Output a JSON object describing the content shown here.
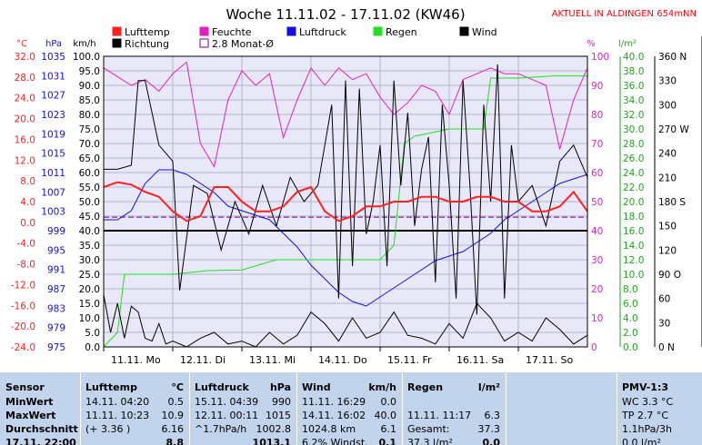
{
  "header": {
    "title": "Woche 11.11.02 - 17.11.02 (KW46)",
    "current_link": "AKTUELL IN ALDINGEN 654mNN"
  },
  "legend": {
    "items": [
      {
        "label": "Lufttemp",
        "color": "#ff2020",
        "fill": true
      },
      {
        "label": "Feuchte",
        "color": "#e020c0",
        "fill": true
      },
      {
        "label": "Luftdruck",
        "color": "#1010e0",
        "fill": true
      },
      {
        "label": "Regen",
        "color": "#20e020",
        "fill": true
      },
      {
        "label": "Wind",
        "color": "#000000",
        "fill": true
      },
      {
        "label": "Richtung",
        "color": "#000000",
        "fill": true
      },
      {
        "label": "2.8 Monat-Ø",
        "color": "#800080",
        "fill": false
      }
    ]
  },
  "axis_units": {
    "temp": "°C",
    "pressure": "hPa",
    "wind": "km/h",
    "humidity": "%",
    "rain": "l/m²"
  },
  "chart_data": {
    "type": "line",
    "title": "Woche 11.11.02 - 17.11.02 (KW46)",
    "x_ticks": [
      "11.11. Mo",
      "12.11. Di",
      "13.11. Mi",
      "14.11. Do",
      "15.11. Fr",
      "16.11. Sa",
      "17.11. So"
    ],
    "x_range": [
      0,
      7
    ],
    "axes": {
      "wind": {
        "range": [
          0,
          100
        ],
        "ticks": [
          "0.0",
          "5.0",
          "10.0",
          "15.0",
          "20.0",
          "25.0",
          "30.0",
          "35.0",
          "40.0",
          "45.0",
          "50.0",
          "55.0",
          "60.0",
          "65.0",
          "70.0",
          "75.0",
          "80.0",
          "85.0",
          "90.0",
          "95.0",
          "100.0"
        ]
      },
      "temp": {
        "range": [
          -24,
          36
        ],
        "ticks": [
          "-24.0",
          "-20.0",
          "-16.0",
          "-12.0",
          "-8.0",
          "-4.0",
          "0.0",
          "4.0",
          "8.0",
          "12.0",
          "16.0",
          "20.0",
          "24.0",
          "28.0",
          "32.0"
        ]
      },
      "pressure": {
        "range": [
          975,
          1039
        ],
        "ticks": [
          "975",
          "979",
          "983",
          "987",
          "991",
          "995",
          "999",
          "1003",
          "1007",
          "1011",
          "1015",
          "1019",
          "1023",
          "1027",
          "1031",
          "1035"
        ]
      },
      "humidity": {
        "range": [
          0,
          100
        ],
        "ticks": [
          "0",
          "10",
          "20",
          "30",
          "40",
          "50",
          "60",
          "70",
          "80",
          "90",
          "100"
        ]
      },
      "rain": {
        "range": [
          0,
          40
        ],
        "ticks": [
          "0.0",
          "2.0",
          "4.0",
          "6.0",
          "8.0",
          "10.0",
          "12.0",
          "14.0",
          "16.0",
          "18.0",
          "20.0",
          "22.0",
          "24.0",
          "26.0",
          "28.0",
          "30.0",
          "32.0",
          "34.0",
          "36.0",
          "38.0",
          "40.0"
        ]
      },
      "direction": {
        "range": [
          0,
          360
        ],
        "ticks": [
          "0 N",
          "30",
          "60",
          "90 O",
          "120",
          "150",
          "180 S",
          "210",
          "240",
          "270 W",
          "300",
          "330",
          "360 N"
        ]
      }
    },
    "reference_lines": {
      "temp_zero": 0,
      "monthly_avg_temp": 2.8
    },
    "series": [
      {
        "name": "Lufttemp",
        "color": "#ff2020",
        "axis": "temp",
        "x": [
          0,
          0.2,
          0.4,
          0.6,
          0.8,
          1.0,
          1.2,
          1.4,
          1.6,
          1.8,
          2.0,
          2.2,
          2.4,
          2.6,
          2.8,
          3.0,
          3.2,
          3.4,
          3.6,
          3.8,
          4.0,
          4.2,
          4.4,
          4.6,
          4.8,
          5.0,
          5.2,
          5.4,
          5.6,
          5.8,
          6.0,
          6.2,
          6.4,
          6.6,
          6.8,
          7.0
        ],
        "y": [
          9,
          10,
          9.5,
          8,
          7,
          4,
          2,
          3,
          9,
          9,
          6,
          4,
          4,
          5,
          8,
          9,
          4,
          2,
          3,
          5,
          5,
          6,
          6,
          7,
          7,
          6,
          6,
          7,
          7,
          6,
          6,
          4,
          4,
          5,
          8,
          4
        ]
      },
      {
        "name": "Feuchte",
        "color": "#e020c0",
        "axis": "humidity",
        "x": [
          0,
          0.2,
          0.4,
          0.6,
          0.8,
          1.0,
          1.2,
          1.4,
          1.6,
          1.8,
          2.0,
          2.2,
          2.4,
          2.6,
          2.8,
          3.0,
          3.2,
          3.4,
          3.6,
          3.8,
          4.0,
          4.2,
          4.4,
          4.6,
          4.8,
          5.0,
          5.2,
          5.4,
          5.6,
          5.8,
          6.0,
          6.2,
          6.4,
          6.6,
          6.8,
          7.0
        ],
        "y": [
          96,
          93,
          90,
          92,
          88,
          94,
          98,
          70,
          62,
          85,
          95,
          90,
          94,
          72,
          85,
          96,
          90,
          96,
          92,
          94,
          86,
          80,
          84,
          90,
          88,
          80,
          92,
          94,
          96,
          94,
          94,
          92,
          90,
          68,
          85,
          96
        ]
      },
      {
        "name": "Luftdruck",
        "color": "#1010e0",
        "axis": "pressure",
        "x": [
          0,
          0.2,
          0.4,
          0.6,
          0.8,
          1.0,
          1.2,
          1.4,
          1.6,
          1.8,
          2.0,
          2.2,
          2.4,
          2.6,
          2.8,
          3.0,
          3.2,
          3.4,
          3.6,
          3.8,
          4.0,
          4.2,
          4.4,
          4.6,
          4.8,
          5.0,
          5.2,
          5.4,
          5.6,
          5.8,
          6.0,
          6.2,
          6.4,
          6.6,
          6.8,
          7.0
        ],
        "y": [
          1003,
          1003,
          1005,
          1011,
          1014,
          1014,
          1013,
          1011,
          1009,
          1006,
          1005,
          1004,
          1003,
          1000,
          997,
          993,
          990,
          987,
          985,
          984,
          986,
          988,
          990,
          992,
          994,
          995,
          996,
          998,
          1000,
          1003,
          1005,
          1007,
          1009,
          1011,
          1012,
          1013
        ]
      },
      {
        "name": "Regen",
        "color": "#20e020",
        "axis": "rain",
        "x": [
          0,
          0.2,
          0.3,
          0.5,
          1.0,
          1.5,
          2.0,
          2.5,
          3.0,
          3.5,
          4.0,
          4.2,
          4.35,
          4.5,
          5.0,
          5.5,
          5.6,
          6.0,
          6.5,
          7.0
        ],
        "y": [
          0,
          2,
          10,
          10,
          10,
          10.5,
          10.6,
          12,
          12,
          12,
          12,
          14,
          28,
          29,
          30,
          30,
          37,
          37,
          37.3,
          37.3
        ]
      },
      {
        "name": "Wind",
        "color": "#000000",
        "axis": "wind",
        "x": [
          0,
          0.1,
          0.2,
          0.3,
          0.4,
          0.5,
          0.6,
          0.7,
          0.8,
          0.9,
          1.0,
          1.2,
          1.4,
          1.6,
          1.8,
          2.0,
          2.2,
          2.4,
          2.6,
          2.8,
          3.0,
          3.2,
          3.4,
          3.6,
          3.8,
          4.0,
          4.2,
          4.4,
          4.6,
          4.8,
          5.0,
          5.2,
          5.4,
          5.6,
          5.8,
          6.0,
          6.2,
          6.4,
          6.6,
          6.8,
          7.0
        ],
        "y": [
          18,
          5,
          15,
          3,
          14,
          12,
          3,
          2,
          8,
          1,
          2,
          0,
          3,
          5,
          1,
          2,
          0,
          5,
          1,
          4,
          12,
          8,
          2,
          10,
          3,
          5,
          12,
          4,
          3,
          1,
          8,
          3,
          15,
          10,
          2,
          5,
          2,
          10,
          6,
          1,
          4
        ]
      },
      {
        "name": "Richtung",
        "color": "#000000",
        "axis": "direction",
        "x": [
          0,
          0.2,
          0.4,
          0.5,
          0.6,
          0.8,
          1.0,
          1.1,
          1.3,
          1.5,
          1.7,
          1.9,
          2.1,
          2.3,
          2.5,
          2.7,
          2.9,
          3.0,
          3.1,
          3.2,
          3.3,
          3.4,
          3.5,
          3.6,
          3.7,
          3.8,
          3.9,
          4.0,
          4.1,
          4.2,
          4.3,
          4.4,
          4.5,
          4.6,
          4.7,
          4.8,
          4.9,
          5.0,
          5.1,
          5.2,
          5.3,
          5.4,
          5.5,
          5.6,
          5.7,
          5.8,
          5.9,
          6.0,
          6.2,
          6.4,
          6.6,
          6.8,
          7.0
        ],
        "y": [
          220,
          220,
          225,
          330,
          330,
          250,
          230,
          70,
          200,
          190,
          120,
          180,
          140,
          200,
          150,
          210,
          180,
          190,
          200,
          250,
          300,
          60,
          330,
          100,
          320,
          140,
          180,
          250,
          100,
          330,
          200,
          290,
          150,
          220,
          260,
          80,
          300,
          200,
          60,
          330,
          200,
          40,
          300,
          180,
          350,
          60,
          250,
          180,
          200,
          150,
          230,
          250,
          210
        ]
      }
    ]
  },
  "stats": {
    "sensor": {
      "header": "Sensor",
      "rows": [
        "MinWert",
        "MaxWert",
        "Durchschnitt",
        "17.11. 22:00"
      ]
    },
    "lufttemp": {
      "header": "Lufttemp",
      "unit": "°C",
      "rows": [
        [
          "14.11.  04:20",
          "0.5"
        ],
        [
          "11.11.  10:23",
          "10.9"
        ],
        [
          "(+ 3.36 )",
          "6.16"
        ],
        [
          "",
          "8.8"
        ]
      ]
    },
    "luftdruck": {
      "header": "Luftdruck",
      "unit": "hPa",
      "rows": [
        [
          "15.11.  04:39",
          "990"
        ],
        [
          "12.11.  00:11",
          "1015"
        ],
        [
          "^1.7hPa/h",
          "1002.8"
        ],
        [
          "",
          "1013.1"
        ]
      ]
    },
    "wind": {
      "header": "Wind",
      "unit": "km/h",
      "rows": [
        [
          "11.11.  16:29",
          "0.0"
        ],
        [
          "14.11.  16:02",
          "40.0"
        ],
        [
          "1024.8 km",
          "6.1"
        ],
        [
          "6.2% Windst.",
          "0.1"
        ]
      ]
    },
    "regen": {
      "header": "Regen",
      "unit": "l/m²",
      "rows": [
        [
          "11.11.  11:17",
          "6.3"
        ],
        [
          "Gesamt:",
          "37.3"
        ],
        [
          "37.3 l/m²",
          "0.0"
        ]
      ]
    },
    "pmv": {
      "header": "PMV-1:3",
      "rows": [
        "WC 3.3 °C",
        "TP 2.7 °C",
        "1.1hPa/3h",
        "0.0 l/m²"
      ]
    }
  }
}
